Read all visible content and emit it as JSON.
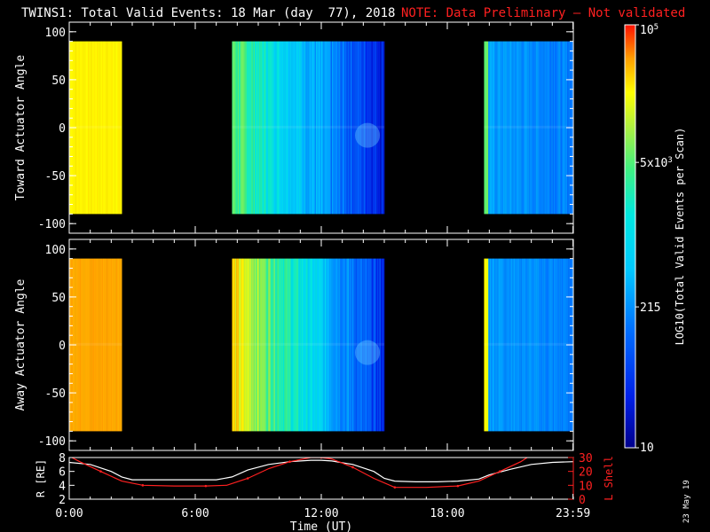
{
  "header": {
    "title": "TWINS1: Total Valid Events: 18 Mar (day  77), 2018",
    "note": "NOTE: Data Preliminary — Not validated"
  },
  "stamp": "23 May 19",
  "chart_data": [
    {
      "type": "heatmap",
      "panel": "toward",
      "ylabel": "Toward Actuator Angle",
      "ylim": [
        -110,
        110
      ],
      "yticks": [
        100,
        50,
        0,
        -50,
        -100
      ],
      "ytick_labels": [
        "100",
        "50",
        "0",
        "-50",
        "-100"
      ],
      "xlim": [
        0,
        24
      ],
      "data_blocks_hours": [
        [
          0,
          2.5
        ],
        [
          7.75,
          15
        ],
        [
          19.75,
          24
        ]
      ],
      "angle_range": [
        -90,
        90
      ]
    },
    {
      "type": "heatmap",
      "panel": "away",
      "ylabel": "Away Actuator Angle",
      "ylim": [
        -110,
        110
      ],
      "yticks": [
        100,
        50,
        0,
        -50,
        -100
      ],
      "ytick_labels": [
        "100",
        "50",
        "0",
        "-50",
        "-100"
      ],
      "xlim": [
        0,
        24
      ],
      "data_blocks_hours": [
        [
          0,
          2.5
        ],
        [
          7.75,
          15
        ],
        [
          19.75,
          24
        ]
      ],
      "angle_range": [
        -90,
        90
      ]
    },
    {
      "type": "line",
      "panel": "orbit",
      "ylabel_left": "R [RE]",
      "ylabel_right": "L Shell",
      "ylim_left": [
        2,
        8
      ],
      "yticks_left": [
        "8",
        "6",
        "4",
        "2"
      ],
      "ylim_right": [
        0,
        30
      ],
      "yticks_right": [
        "30",
        "20",
        "10",
        "0"
      ],
      "xlabel": "Time (UT)",
      "xlim": [
        0,
        24
      ],
      "xticks": [
        0,
        6,
        12,
        18,
        23.983
      ],
      "xtick_labels": [
        "0:00",
        "6:00",
        "12:00",
        "18:00",
        "23:59"
      ],
      "series": [
        {
          "axis": "left",
          "color": "#ffffff",
          "x": [
            0,
            1,
            2,
            2.5,
            3,
            4,
            5,
            6,
            7,
            7.75,
            8.5,
            9.5,
            10.5,
            11.5,
            12,
            12.5,
            13.5,
            14.5,
            15,
            15.5,
            16.5,
            17.5,
            18.5,
            19.5,
            20,
            21,
            22,
            23,
            24
          ],
          "y": [
            7.3,
            7.0,
            6.0,
            5.2,
            4.8,
            4.8,
            4.8,
            4.8,
            4.8,
            5.2,
            6.2,
            7.0,
            7.4,
            7.6,
            7.6,
            7.5,
            7.0,
            6.0,
            5.0,
            4.6,
            4.5,
            4.5,
            4.6,
            4.9,
            5.5,
            6.3,
            7.0,
            7.3,
            7.4
          ]
        },
        {
          "axis": "right",
          "color": "#ff2020",
          "x": [
            0,
            0.5,
            1.5,
            2.5,
            3.5,
            5,
            6.5,
            7.5,
            8.5,
            9.5,
            10.5,
            11.5,
            12,
            12.5,
            13.5,
            14.5,
            15.5,
            17,
            18.5,
            19.5,
            20.5,
            21.5,
            22
          ],
          "y": [
            31,
            27,
            20,
            13,
            10,
            9.5,
            9.5,
            10,
            15,
            22,
            27,
            30,
            30,
            29,
            23,
            15,
            8.5,
            8.5,
            9.5,
            13,
            20,
            27,
            32
          ]
        }
      ]
    }
  ],
  "colorbar": {
    "label": "LOG10(Total Valid Events per Scan)",
    "ticks": [
      {
        "value": 100000,
        "label": "10",
        "sup": "5"
      },
      {
        "value": 5000,
        "label": "5x10",
        "sup": "3"
      },
      {
        "value": 215,
        "label": "215",
        "sup": ""
      },
      {
        "value": 10,
        "label": "10",
        "sup": ""
      }
    ],
    "range": [
      10,
      100000
    ]
  },
  "colors": {
    "background": "#000000",
    "axis": "#ffffff",
    "note": "#ff2020",
    "lshell": "#ff2020"
  }
}
